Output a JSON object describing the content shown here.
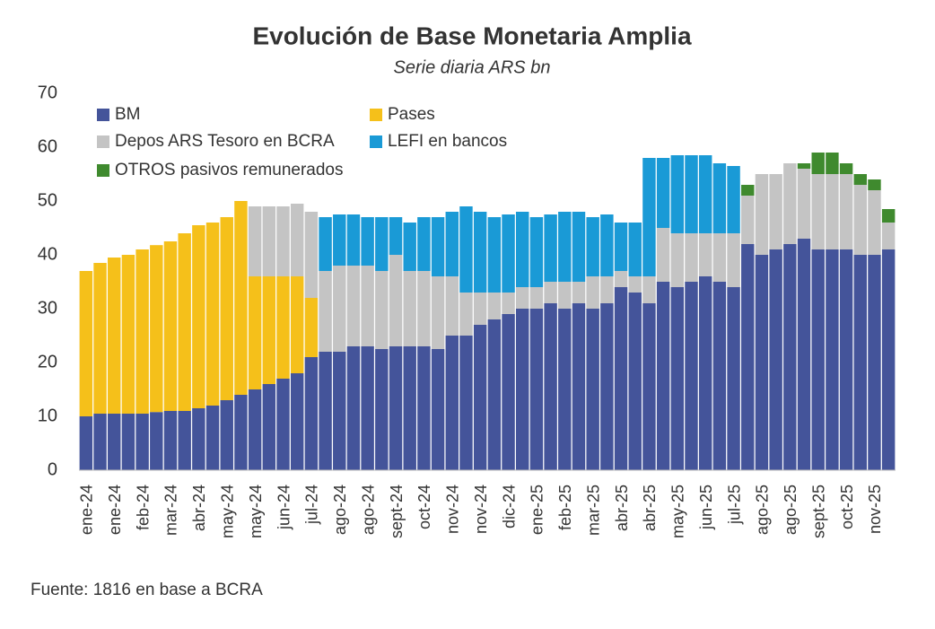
{
  "chart_data": {
    "type": "stacked-bar",
    "title": "Evolución de Base Monetaria Amplia",
    "subtitle": "Serie diaria ARS bn",
    "source": "Fuente: 1816 en base a BCRA",
    "categories": [
      "ene-24",
      null,
      "ene-24",
      null,
      "feb-24",
      null,
      "mar-24",
      null,
      "abr-24",
      null,
      "may-24",
      null,
      "may-24",
      null,
      "jun-24",
      null,
      "jul-24",
      null,
      "ago-24",
      null,
      "ago-24",
      null,
      "sept-24",
      null,
      "oct-24",
      null,
      "nov-24",
      null,
      "nov-24",
      null,
      "dic-24",
      null,
      "ene-25",
      null,
      "feb-25",
      null,
      "mar-25",
      null,
      "abr-25",
      null,
      "abr-25",
      null,
      "may-25",
      null,
      "jun-25",
      null,
      "jul-25",
      null,
      "ago-25",
      null,
      "ago-25",
      null,
      "sept-25",
      null,
      "oct-25",
      null,
      "nov-25",
      null
    ],
    "series": [
      {
        "name": "BM",
        "color": "#44549a",
        "values": [
          10,
          10.5,
          10.5,
          10.5,
          10.5,
          10.8,
          11,
          11,
          11.5,
          12,
          13,
          14,
          15,
          16,
          17,
          18,
          21,
          22,
          22,
          23,
          23,
          22.5,
          23,
          23,
          23,
          22.5,
          25,
          25,
          27,
          28,
          29,
          30,
          30,
          31,
          30,
          31,
          30,
          31,
          34,
          33,
          31,
          35,
          34,
          35,
          36,
          35,
          34,
          42,
          40,
          41,
          42,
          43,
          41,
          41,
          41,
          40,
          40,
          41
        ]
      },
      {
        "name": "Pases",
        "color": "#f5c01a",
        "values": [
          27,
          28,
          29,
          29.5,
          30.5,
          31,
          31.5,
          33,
          34,
          34,
          34,
          36,
          21,
          20,
          19,
          18,
          11,
          0,
          0,
          0,
          0,
          0,
          0,
          0,
          0,
          0,
          0,
          0,
          0,
          0,
          0,
          0,
          0,
          0,
          0,
          0,
          0,
          0,
          0,
          0,
          0,
          0,
          0,
          0,
          0,
          0,
          0,
          0,
          0,
          0,
          0,
          0,
          0,
          0,
          0,
          0,
          0,
          0
        ]
      },
      {
        "name": "Depos ARS Tesoro en BCRA",
        "color": "#c4c4c4",
        "values": [
          0,
          0,
          0,
          0,
          0,
          0,
          0,
          0,
          0,
          0,
          0,
          0,
          13,
          13,
          13,
          13.5,
          16,
          15,
          16,
          15,
          15,
          14.5,
          17,
          14,
          14,
          13.5,
          11,
          8,
          6,
          5,
          4,
          4,
          4,
          4,
          5,
          4,
          6,
          5,
          3,
          3,
          5,
          10,
          10,
          9,
          8,
          9,
          10,
          9,
          15,
          14,
          15,
          13,
          14,
          14,
          14,
          13,
          12,
          5
        ]
      },
      {
        "name": "LEFI en bancos",
        "color": "#1a9ad6",
        "values": [
          0,
          0,
          0,
          0,
          0,
          0,
          0,
          0,
          0,
          0,
          0,
          0,
          0,
          0,
          0,
          0,
          0,
          10,
          9.5,
          9.5,
          9,
          10,
          7,
          9,
          10,
          11,
          12,
          16,
          15,
          14,
          14.5,
          14,
          13,
          12.5,
          13,
          13,
          11,
          11.5,
          9,
          10,
          22,
          13,
          14.5,
          14.5,
          14.5,
          13,
          12.5,
          0,
          0,
          0,
          0,
          0,
          0,
          0,
          0,
          0,
          0,
          0
        ]
      },
      {
        "name": "OTROS pasivos remunerados",
        "color": "#3f8a2e",
        "values": [
          0,
          0,
          0,
          0,
          0,
          0,
          0,
          0,
          0,
          0,
          0,
          0,
          0,
          0,
          0,
          0,
          0,
          0,
          0,
          0,
          0,
          0,
          0,
          0,
          0,
          0,
          0,
          0,
          0,
          0,
          0,
          0,
          0,
          0,
          0,
          0,
          0,
          0,
          0,
          0,
          0,
          0,
          0,
          0,
          0,
          0,
          0,
          2,
          0,
          0,
          0,
          1,
          4,
          4,
          2,
          2,
          2,
          2.5
        ]
      }
    ],
    "ylim": [
      0,
      70
    ],
    "yticks": [
      0,
      10,
      20,
      30,
      40,
      50,
      60,
      70
    ],
    "grid": false
  }
}
